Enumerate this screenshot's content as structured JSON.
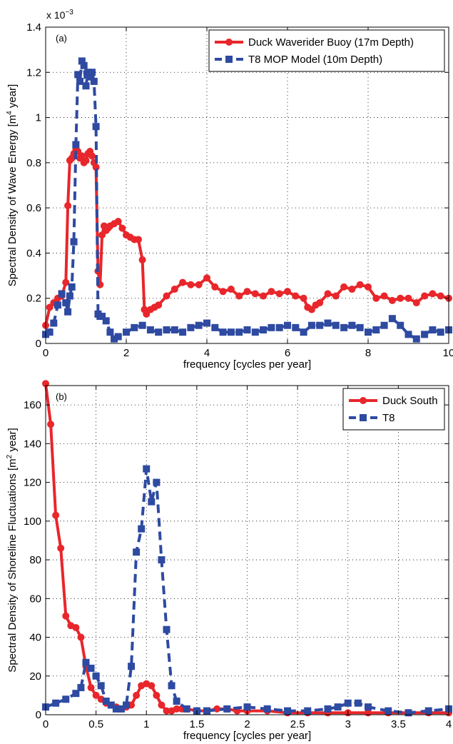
{
  "chart_data": [
    {
      "type": "line",
      "panel_label": "(a)",
      "ylabel": "Spectral Density of Wave Energy [m",
      "ylabel_superscript": "4",
      "ylabel_suffix": " year]",
      "xlabel": "frequency [cycles per year]",
      "exponent_label": "x 10",
      "exponent_superscript": "−3",
      "xlim": [
        0,
        10
      ],
      "ylim": [
        0,
        1.4
      ],
      "xticks": [
        0,
        2,
        4,
        6,
        8,
        10
      ],
      "xtick_labels": [
        "0",
        "2",
        "4",
        "6",
        "8",
        "10"
      ],
      "yticks": [
        0,
        0.2,
        0.4,
        0.6,
        0.8,
        1.0,
        1.2,
        1.4
      ],
      "ytick_labels": [
        "0",
        "0.2",
        "0.4",
        "0.6",
        "0.8",
        "1",
        "1.2",
        "1.4"
      ],
      "grid": true,
      "legend_position": "top-right",
      "series": [
        {
          "name": "Duck Waverider Buoy (17m Depth)",
          "color": "#e8262b",
          "style": "solid",
          "marker": "circle",
          "x": [
            0,
            0.1,
            0.2,
            0.3,
            0.4,
            0.5,
            0.55,
            0.6,
            0.65,
            0.7,
            0.75,
            0.8,
            0.85,
            0.9,
            0.95,
            1.0,
            1.05,
            1.1,
            1.15,
            1.2,
            1.25,
            1.3,
            1.35,
            1.4,
            1.45,
            1.5,
            1.55,
            1.6,
            1.7,
            1.8,
            1.9,
            2.0,
            2.1,
            2.2,
            2.3,
            2.4,
            2.45,
            2.5,
            2.6,
            2.7,
            2.8,
            3.0,
            3.2,
            3.4,
            3.6,
            3.8,
            4.0,
            4.2,
            4.4,
            4.6,
            4.8,
            5.0,
            5.2,
            5.4,
            5.6,
            5.8,
            6.0,
            6.2,
            6.4,
            6.5,
            6.6,
            6.7,
            6.8,
            7.0,
            7.2,
            7.4,
            7.6,
            7.8,
            8.0,
            8.2,
            8.4,
            8.6,
            8.8,
            9.0,
            9.2,
            9.4,
            9.6,
            9.8,
            10.0
          ],
          "y": [
            0.08,
            0.16,
            0.18,
            0.2,
            0.21,
            0.27,
            0.61,
            0.81,
            0.82,
            0.84,
            0.86,
            0.85,
            0.82,
            0.83,
            0.8,
            0.81,
            0.84,
            0.85,
            0.83,
            0.8,
            0.78,
            0.32,
            0.26,
            0.48,
            0.52,
            0.5,
            0.51,
            0.52,
            0.53,
            0.54,
            0.51,
            0.48,
            0.47,
            0.46,
            0.46,
            0.37,
            0.15,
            0.13,
            0.15,
            0.16,
            0.17,
            0.21,
            0.24,
            0.27,
            0.26,
            0.26,
            0.29,
            0.25,
            0.23,
            0.24,
            0.21,
            0.23,
            0.22,
            0.21,
            0.23,
            0.22,
            0.23,
            0.21,
            0.2,
            0.16,
            0.15,
            0.17,
            0.18,
            0.22,
            0.21,
            0.25,
            0.24,
            0.26,
            0.25,
            0.2,
            0.21,
            0.19,
            0.2,
            0.2,
            0.18,
            0.21,
            0.22,
            0.21,
            0.2
          ]
        },
        {
          "name": "T8 MOP Model (10m Depth)",
          "color": "#2e4aa1",
          "style": "dashed",
          "marker": "square",
          "x": [
            0,
            0.1,
            0.2,
            0.3,
            0.4,
            0.5,
            0.55,
            0.6,
            0.65,
            0.7,
            0.75,
            0.8,
            0.85,
            0.9,
            0.95,
            1.0,
            1.05,
            1.1,
            1.15,
            1.2,
            1.25,
            1.3,
            1.35,
            1.4,
            1.5,
            1.6,
            1.7,
            1.8,
            2.0,
            2.2,
            2.4,
            2.6,
            2.8,
            3.0,
            3.2,
            3.4,
            3.6,
            3.8,
            4.0,
            4.2,
            4.4,
            4.6,
            4.8,
            5.0,
            5.2,
            5.4,
            5.6,
            5.8,
            6.0,
            6.2,
            6.4,
            6.6,
            6.8,
            7.0,
            7.2,
            7.4,
            7.6,
            7.8,
            8.0,
            8.2,
            8.4,
            8.6,
            8.8,
            9.0,
            9.2,
            9.4,
            9.6,
            9.8,
            10.0
          ],
          "y": [
            0.04,
            0.05,
            0.09,
            0.17,
            0.22,
            0.18,
            0.14,
            0.21,
            0.25,
            0.45,
            0.88,
            1.19,
            1.16,
            1.25,
            1.23,
            1.14,
            1.2,
            1.18,
            1.2,
            1.16,
            0.96,
            0.13,
            0.12,
            0.12,
            0.1,
            0.05,
            0.02,
            0.03,
            0.05,
            0.07,
            0.08,
            0.06,
            0.05,
            0.06,
            0.06,
            0.05,
            0.07,
            0.08,
            0.09,
            0.07,
            0.05,
            0.05,
            0.05,
            0.06,
            0.05,
            0.06,
            0.07,
            0.07,
            0.08,
            0.07,
            0.05,
            0.08,
            0.08,
            0.09,
            0.08,
            0.07,
            0.08,
            0.07,
            0.05,
            0.06,
            0.08,
            0.11,
            0.08,
            0.04,
            0.02,
            0.04,
            0.06,
            0.05,
            0.06
          ]
        }
      ]
    },
    {
      "type": "line",
      "panel_label": "(b)",
      "ylabel": "Spectral Density of Shoreline Fluctuations [m",
      "ylabel_superscript": "2",
      "ylabel_suffix": " year]",
      "xlabel": "frequency [cycles per year]",
      "xlim": [
        0,
        4
      ],
      "ylim": [
        0,
        170
      ],
      "xticks": [
        0,
        0.5,
        1,
        1.5,
        2,
        2.5,
        3,
        3.5,
        4
      ],
      "xtick_labels": [
        "0",
        "0.5",
        "1",
        "1.5",
        "2",
        "2.5",
        "3",
        "3.5",
        "4"
      ],
      "yticks": [
        0,
        20,
        40,
        60,
        80,
        100,
        120,
        140,
        160
      ],
      "ytick_labels": [
        "0",
        "20",
        "40",
        "60",
        "80",
        "100",
        "120",
        "140",
        "160"
      ],
      "grid": true,
      "legend_position": "top-right",
      "series": [
        {
          "name": "Duck South",
          "color": "#e8262b",
          "style": "solid",
          "marker": "circle",
          "x": [
            0,
            0.05,
            0.1,
            0.15,
            0.2,
            0.25,
            0.3,
            0.35,
            0.4,
            0.45,
            0.5,
            0.55,
            0.6,
            0.65,
            0.7,
            0.75,
            0.8,
            0.85,
            0.9,
            0.95,
            1.0,
            1.05,
            1.1,
            1.15,
            1.2,
            1.25,
            1.3,
            1.35,
            1.4,
            1.5,
            1.6,
            1.7,
            1.8,
            1.9,
            2.0,
            2.2,
            2.4,
            2.6,
            2.8,
            3.0,
            3.2,
            3.4,
            3.6,
            3.8,
            4.0
          ],
          "y": [
            171,
            150,
            103,
            86,
            51,
            46,
            45,
            40,
            25,
            14,
            10,
            8,
            6,
            5,
            4,
            3,
            4,
            5,
            10,
            15,
            16,
            15,
            10,
            5,
            2,
            2,
            3,
            3,
            3,
            2,
            2,
            3,
            3,
            2,
            2,
            2,
            1,
            1,
            1,
            1,
            1,
            1,
            1,
            1,
            1
          ]
        },
        {
          "name": "T8",
          "color": "#2e4aa1",
          "style": "dashed",
          "marker": "square",
          "x": [
            0,
            0.1,
            0.2,
            0.3,
            0.35,
            0.4,
            0.45,
            0.5,
            0.55,
            0.6,
            0.65,
            0.7,
            0.75,
            0.8,
            0.85,
            0.9,
            0.95,
            1.0,
            1.05,
            1.1,
            1.15,
            1.2,
            1.25,
            1.3,
            1.4,
            1.5,
            1.6,
            1.8,
            2.0,
            2.2,
            2.4,
            2.6,
            2.8,
            2.9,
            3.0,
            3.1,
            3.2,
            3.4,
            3.6,
            3.8,
            4.0
          ],
          "y": [
            4,
            6,
            8,
            11,
            14,
            27,
            24,
            20,
            15,
            7,
            5,
            3,
            3,
            5,
            25,
            84,
            96,
            127,
            110,
            120,
            80,
            44,
            15,
            7,
            3,
            2,
            2,
            3,
            4,
            3,
            2,
            2,
            3,
            4,
            6,
            6,
            4,
            2,
            1,
            2,
            3
          ]
        }
      ]
    }
  ]
}
